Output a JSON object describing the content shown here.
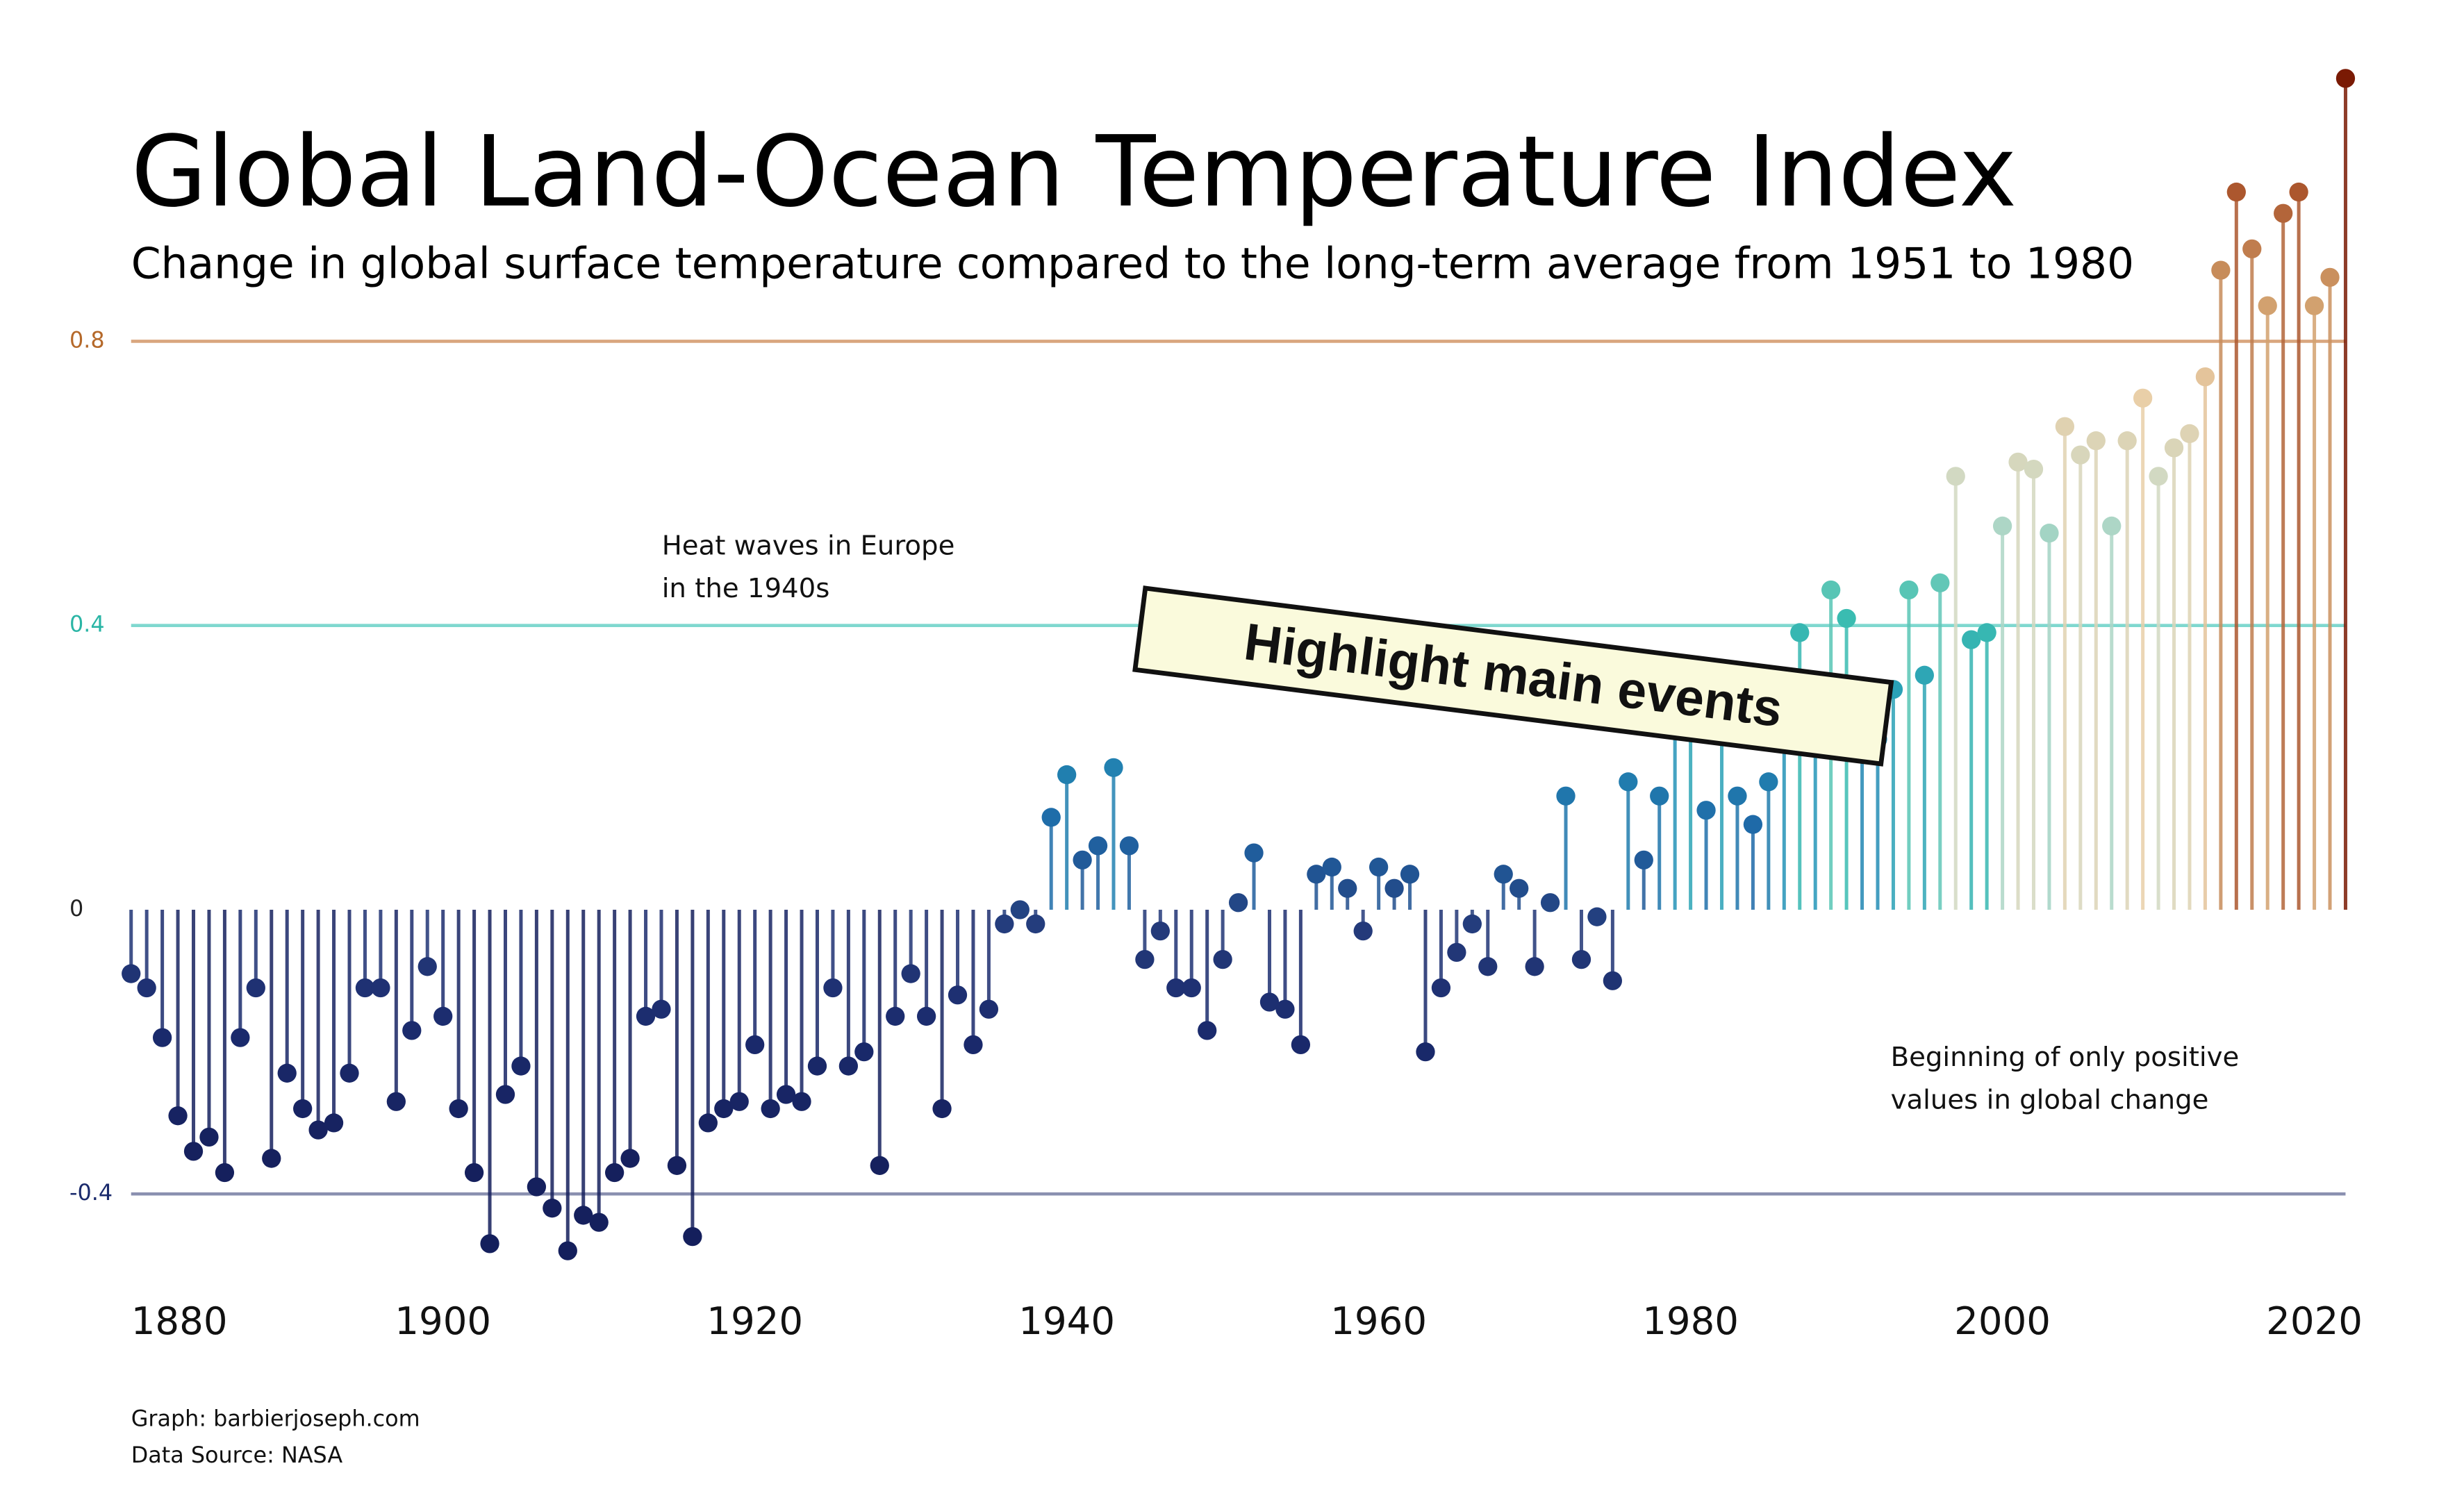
{
  "chart_data": {
    "type": "lollipop",
    "title": "Global Land-Ocean Temperature Index",
    "subtitle": "Change in global surface temperature compared to the long-term average from 1951 to 1980",
    "x": [
      1880,
      1881,
      1882,
      1883,
      1884,
      1885,
      1886,
      1887,
      1888,
      1889,
      1890,
      1891,
      1892,
      1893,
      1894,
      1895,
      1896,
      1897,
      1898,
      1899,
      1900,
      1901,
      1902,
      1903,
      1904,
      1905,
      1906,
      1907,
      1908,
      1909,
      1910,
      1911,
      1912,
      1913,
      1914,
      1915,
      1916,
      1917,
      1918,
      1919,
      1920,
      1921,
      1922,
      1923,
      1924,
      1925,
      1926,
      1927,
      1928,
      1929,
      1930,
      1931,
      1932,
      1933,
      1934,
      1935,
      1936,
      1937,
      1938,
      1939,
      1940,
      1941,
      1942,
      1943,
      1944,
      1945,
      1946,
      1947,
      1948,
      1949,
      1950,
      1951,
      1952,
      1953,
      1954,
      1955,
      1956,
      1957,
      1958,
      1959,
      1960,
      1961,
      1962,
      1963,
      1964,
      1965,
      1966,
      1967,
      1968,
      1969,
      1970,
      1971,
      1972,
      1973,
      1974,
      1975,
      1976,
      1977,
      1978,
      1979,
      1980,
      1981,
      1982,
      1983,
      1984,
      1985,
      1986,
      1987,
      1988,
      1989,
      1990,
      1991,
      1992,
      1993,
      1994,
      1995,
      1996,
      1997,
      1998,
      1999,
      2000,
      2001,
      2002,
      2003,
      2004,
      2005,
      2006,
      2007,
      2008,
      2009,
      2010,
      2011,
      2012,
      2013,
      2014,
      2015,
      2016,
      2017,
      2018,
      2019,
      2020,
      2021,
      2022
    ],
    "values": [
      -0.09,
      -0.11,
      -0.18,
      -0.29,
      -0.34,
      -0.32,
      -0.37,
      -0.18,
      -0.11,
      -0.35,
      -0.23,
      -0.28,
      -0.31,
      -0.3,
      -0.23,
      -0.11,
      -0.11,
      -0.27,
      -0.17,
      -0.08,
      -0.15,
      -0.28,
      -0.37,
      -0.47,
      -0.26,
      -0.22,
      -0.39,
      -0.42,
      -0.48,
      -0.43,
      -0.44,
      -0.37,
      -0.35,
      -0.15,
      -0.14,
      -0.36,
      -0.46,
      -0.3,
      -0.28,
      -0.27,
      -0.19,
      -0.28,
      -0.26,
      -0.27,
      -0.22,
      -0.11,
      -0.22,
      -0.2,
      -0.36,
      -0.15,
      -0.09,
      -0.15,
      -0.28,
      -0.12,
      -0.19,
      -0.14,
      -0.02,
      0,
      -0.02,
      0.13,
      0.19,
      0.07,
      0.09,
      0.2,
      0.09,
      -0.07,
      -0.03,
      -0.11,
      -0.11,
      -0.17,
      -0.07,
      0.01,
      0.08,
      -0.13,
      -0.14,
      -0.19,
      0.05,
      0.06,
      0.03,
      -0.03,
      0.06,
      0.03,
      0.05,
      -0.2,
      -0.11,
      -0.06,
      -0.02,
      -0.08,
      0.05,
      0.03,
      -0.08,
      0.01,
      0.16,
      -0.07,
      -0.01,
      -0.1,
      0.18,
      0.07,
      0.16,
      0.26,
      0.32,
      0.14,
      0.31,
      0.16,
      0.12,
      0.18,
      0.26,
      0.39,
      0.27,
      0.45,
      0.41,
      0.22,
      0.24,
      0.31,
      0.45,
      0.33,
      0.46,
      0.61,
      0.38,
      0.39,
      0.54,
      0.63,
      0.62,
      0.53,
      0.68,
      0.64,
      0.66,
      0.54,
      0.66,
      0.72,
      0.61,
      0.65,
      0.67,
      0.75,
      0.9,
      1.01,
      0.93,
      0.85,
      0.98,
      1.01,
      0.85,
      0.89,
      1.17
    ],
    "colormap": [
      "#141f5c",
      "#16215e",
      "#1a2a6c",
      "#243a7a",
      "#1f6aa8",
      "#2496b8",
      "#3cbfb0",
      "#c9dccb",
      "#e9cfa8",
      "#cf9a66",
      "#a9522a",
      "#7a1a04"
    ],
    "xlim": [
      1880,
      2022
    ],
    "xticks": [
      1880,
      1900,
      1920,
      1940,
      1960,
      1980,
      2000,
      2020
    ],
    "ylim": [
      -0.6,
      1.2
    ],
    "yticks": [
      -0.4,
      0,
      0.4,
      0.8
    ],
    "ytick_colors": [
      "#1a2a6c",
      "#222222",
      "#2ab5a5",
      "#b5692a"
    ],
    "grid_colors": [
      "#8a90b0",
      null,
      "#7fd8cf",
      "#d9a67e"
    ],
    "annotations": [
      {
        "lines": [
          "Heat waves in Europe",
          "in the 1940s"
        ]
      },
      {
        "lines": [
          "Beginning of only positive",
          "values in global change"
        ]
      }
    ],
    "callout": "Highlight main events",
    "notes": [
      "Graph: barbierjoseph.com",
      "Data Source: NASA"
    ]
  }
}
